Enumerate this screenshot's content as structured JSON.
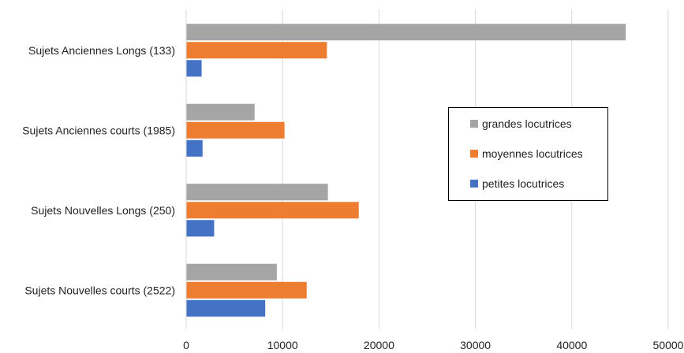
{
  "chart_data": {
    "type": "bar",
    "orientation": "horizontal",
    "title": "",
    "xlabel": "",
    "ylabel": "",
    "categories": [
      "Sujets Anciennes Longs (133)",
      "Sujets Anciennes courts (1985)",
      "Sujets Nouvelles Longs (250)",
      "Sujets Nouvelles courts (2522)"
    ],
    "series": [
      {
        "name": "grandes locutrices",
        "color": "#a5a5a5",
        "values": [
          45600,
          7100,
          14700,
          9400
        ]
      },
      {
        "name": "moyennes locutrices",
        "color": "#ed7d31",
        "values": [
          14600,
          10200,
          17900,
          12500
        ]
      },
      {
        "name": "petites locutrices",
        "color": "#4472c4",
        "values": [
          1600,
          1700,
          2900,
          8200
        ]
      }
    ],
    "xlim": [
      0,
      50000
    ],
    "xticks": [
      "0",
      "10000",
      "20000",
      "30000",
      "40000",
      "50000"
    ],
    "grid": true,
    "legend_position": "right"
  }
}
